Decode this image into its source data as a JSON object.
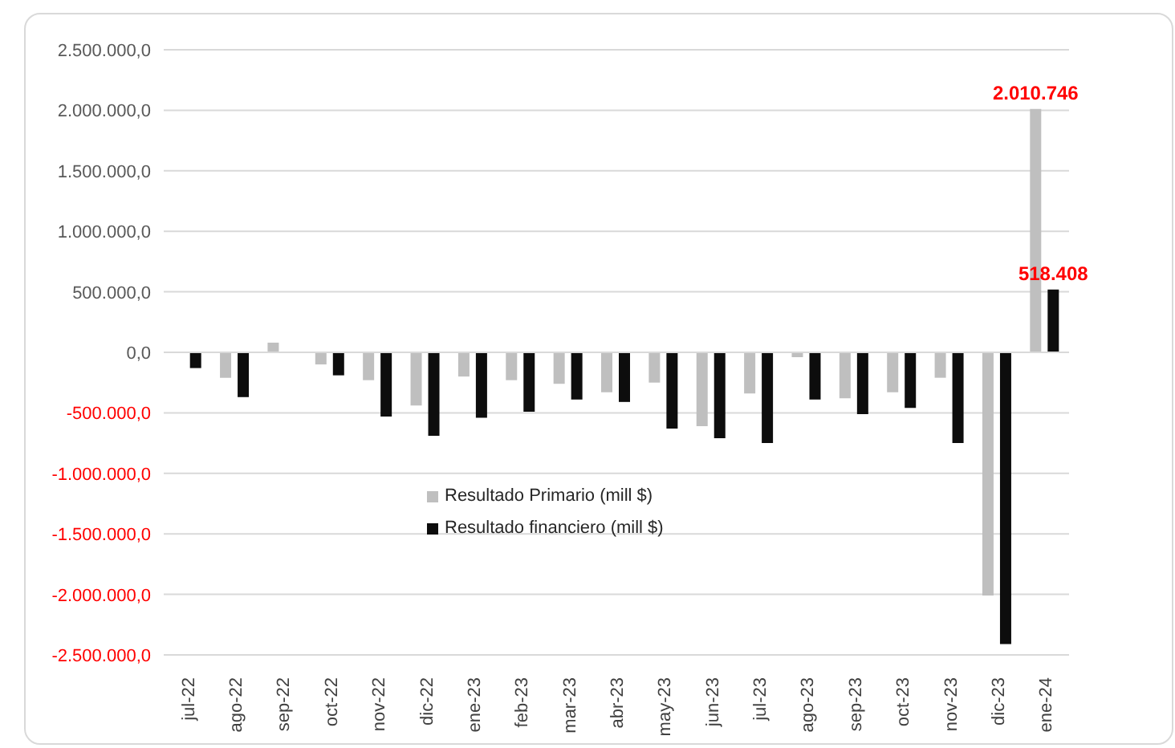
{
  "chart_data": {
    "type": "bar",
    "categories": [
      "jul-22",
      "ago-22",
      "sep-22",
      "oct-22",
      "nov-22",
      "dic-22",
      "ene-23",
      "feb-23",
      "mar-23",
      "abr-23",
      "may-23",
      "jun-23",
      "jul-23",
      "ago-23",
      "sep-23",
      "oct-23",
      "nov-23",
      "dic-23",
      "ene-24"
    ],
    "series": [
      {
        "name": "Resultado Primario (mill $)",
        "color": "#bfbfbf",
        "values": [
          0,
          -210000,
          80000,
          -100000,
          -230000,
          -440000,
          -200000,
          -230000,
          -260000,
          -330000,
          -250000,
          -610000,
          -340000,
          -40000,
          -380000,
          -330000,
          -210000,
          -2010000,
          2010746
        ],
        "value_labels": [
          null,
          null,
          null,
          null,
          null,
          null,
          null,
          null,
          null,
          null,
          null,
          null,
          null,
          null,
          null,
          null,
          null,
          null,
          "2.010.746"
        ]
      },
      {
        "name": "Resultado financiero (mill $)",
        "color": "#0d0d0d",
        "values": [
          -130000,
          -370000,
          0,
          -190000,
          -530000,
          -690000,
          -540000,
          -490000,
          -390000,
          -410000,
          -630000,
          -710000,
          -750000,
          -390000,
          -510000,
          -460000,
          -750000,
          -2410000,
          518408
        ],
        "value_labels": [
          null,
          null,
          null,
          null,
          null,
          null,
          null,
          null,
          null,
          null,
          null,
          null,
          null,
          null,
          null,
          null,
          null,
          null,
          "518.408"
        ]
      }
    ],
    "ylim": [
      -2500000,
      2500000
    ],
    "yticks": [
      {
        "value": -2500000,
        "label": "-2.500.000,0"
      },
      {
        "value": -2000000,
        "label": "-2.000.000,0"
      },
      {
        "value": -1500000,
        "label": "-1.500.000,0"
      },
      {
        "value": -1000000,
        "label": "-1.000.000,0"
      },
      {
        "value": -500000,
        "label": "-500.000,0"
      },
      {
        "value": 0,
        "label": "0,0"
      },
      {
        "value": 500000,
        "label": "500.000,0"
      },
      {
        "value": 1000000,
        "label": "1.000.000,0"
      },
      {
        "value": 1500000,
        "label": "1.500.000,0"
      },
      {
        "value": 2000000,
        "label": "2.000.000,0"
      },
      {
        "value": 2500000,
        "label": "2.500.000,0"
      }
    ],
    "grid": "y",
    "legend": "center"
  }
}
